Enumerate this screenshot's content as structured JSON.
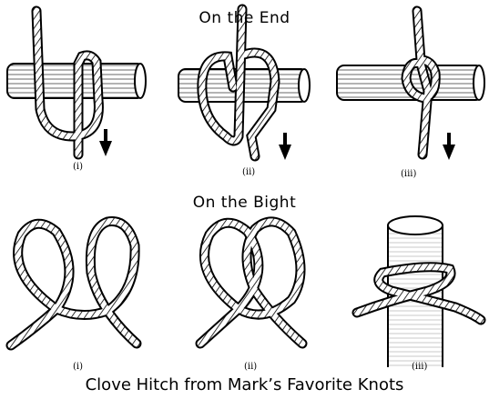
{
  "headings": {
    "on_the_end": "On the End",
    "on_the_bight": "On the Bight"
  },
  "caption": "Clove Hitch from Mark’s Favorite Knots",
  "step_labels": {
    "end": [
      "(i)",
      "(ii)",
      "(iii)"
    ],
    "bight": [
      "(i)",
      "(ii)",
      "(iii)"
    ]
  },
  "colors": {
    "ink": "#000000",
    "paper": "#ffffff"
  }
}
